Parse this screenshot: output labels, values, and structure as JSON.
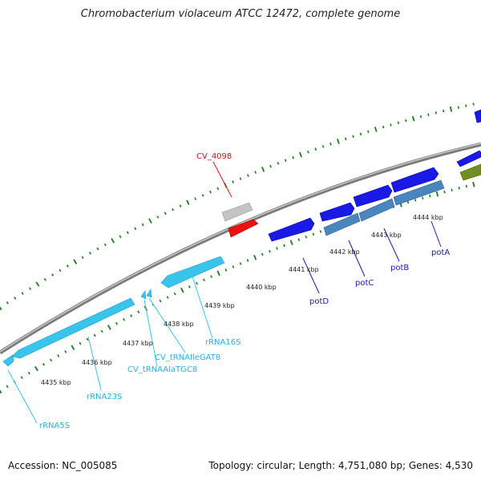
{
  "title": "Chromobacterium violaceum ATCC 12472, complete genome",
  "footer": {
    "accession": "Accession: NC_005085",
    "topology": "Topology: circular; Length: 4,751,080 bp; Genes: 4,530"
  },
  "colors": {
    "backbone": "#8a8a8a",
    "ticks": "#1a7a1a",
    "rrna": "#39c4ec",
    "cds_forward": "#1a1ae6",
    "cds_steel": "#4a86be",
    "cds_red": "#ee1111",
    "pseudo_gray": "#c4c4c4",
    "olive": "#6f8f1e",
    "label_rrna": "#2aaede",
    "label_gene": "#1a1ab0",
    "label_red": "#d01010",
    "kbp_text": "#222222"
  },
  "kbp_labels": [
    "4435 kbp",
    "4436 kbp",
    "4437 kbp",
    "4438 kbp",
    "4439 kbp",
    "4440 kbp",
    "4441 kbp",
    "4442 kbp",
    "4443 kbp",
    "4444 kbp"
  ],
  "feature_labels": {
    "rRNA5S": "rRNA5S",
    "rRNA23S": "rRNA23S",
    "tRNAAla": "CV_tRNAAlaTGC8",
    "tRNAIle": "CV_tRNAIleGAT8",
    "rRNA16S": "rRNA16S",
    "cv4098": "CV_4098",
    "potD": "potD",
    "potC": "potC",
    "potB": "potB",
    "potA": "potA"
  }
}
